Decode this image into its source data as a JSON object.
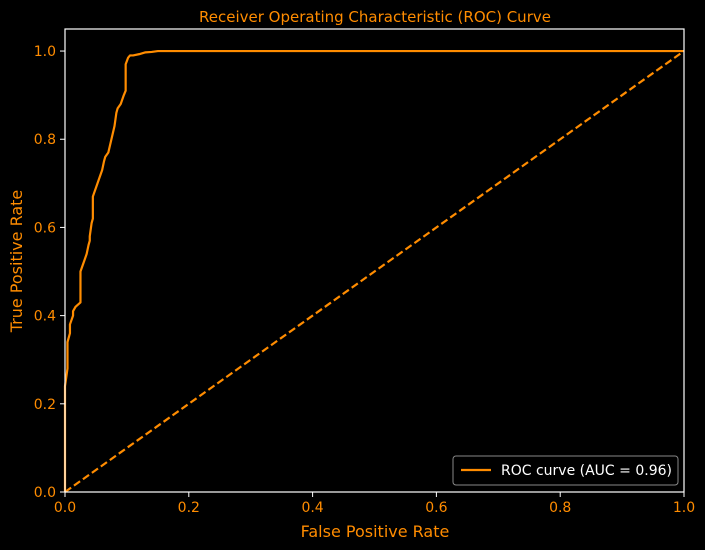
{
  "colors": {
    "background": "#000000",
    "text": "#ff8c00",
    "curve": "#ff8c00",
    "frame": "#ffffff",
    "legend_text": "#ffffff"
  },
  "chart_data": {
    "type": "line",
    "title": "Receiver Operating Characteristic (ROC) Curve",
    "xlabel": "False Positive Rate",
    "ylabel": "True Positive Rate",
    "xlim": [
      0.0,
      1.0
    ],
    "ylim": [
      0.0,
      1.05
    ],
    "xticks": [
      0.0,
      0.2,
      0.4,
      0.6,
      0.8,
      1.0
    ],
    "yticks": [
      0.0,
      0.2,
      0.4,
      0.6,
      0.8,
      1.0
    ],
    "xtick_labels": [
      "0.0",
      "0.2",
      "0.4",
      "0.6",
      "0.8",
      "1.0"
    ],
    "ytick_labels": [
      "0.0",
      "0.2",
      "0.4",
      "0.6",
      "0.8",
      "1.0"
    ],
    "grid": false,
    "legend_location": "lower-right",
    "series": [
      {
        "name": "ROC curve (AUC = 0.96)",
        "style": "solid",
        "x": [
          0.0,
          0.0,
          0.004,
          0.004,
          0.008,
          0.008,
          0.013,
          0.013,
          0.017,
          0.025,
          0.025,
          0.03,
          0.035,
          0.038,
          0.04,
          0.04,
          0.043,
          0.045,
          0.045,
          0.05,
          0.055,
          0.06,
          0.063,
          0.065,
          0.07,
          0.075,
          0.08,
          0.083,
          0.085,
          0.09,
          0.095,
          0.098,
          0.098,
          0.102,
          0.105,
          0.11,
          0.12,
          0.13,
          0.14,
          0.15,
          0.18,
          0.2,
          1.0
        ],
        "y": [
          0.0,
          0.24,
          0.28,
          0.34,
          0.36,
          0.38,
          0.4,
          0.41,
          0.42,
          0.43,
          0.5,
          0.52,
          0.54,
          0.56,
          0.57,
          0.58,
          0.61,
          0.62,
          0.67,
          0.69,
          0.71,
          0.73,
          0.75,
          0.76,
          0.77,
          0.8,
          0.83,
          0.86,
          0.87,
          0.88,
          0.9,
          0.91,
          0.97,
          0.985,
          0.99,
          0.99,
          0.993,
          0.997,
          0.998,
          1.0,
          1.0,
          1.0,
          1.0
        ]
      },
      {
        "style": "dashed",
        "x": [
          0.0,
          1.0
        ],
        "y": [
          0.0,
          1.0
        ]
      }
    ]
  }
}
